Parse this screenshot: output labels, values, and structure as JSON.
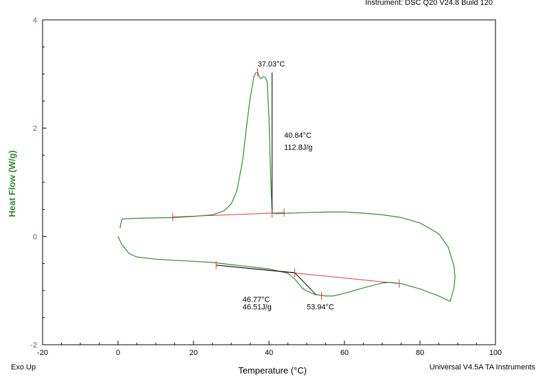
{
  "header": {
    "instrument": "Instrument: DSC Q20 V24.8 Build 120"
  },
  "footer": {
    "exo_direction": "Exo Up",
    "software": "Universal V4.5A TA Instruments"
  },
  "colors": {
    "curve": "#2e8b2e",
    "baseline": "#e03a3a",
    "annotation_line": "#000000",
    "ylabel": "#2e8b2e"
  },
  "chart_data": {
    "type": "line",
    "xlabel": "Temperature (°C)",
    "ylabel": "Heat Flow (W/g)",
    "xlim": [
      -20,
      100
    ],
    "ylim": [
      -2,
      4
    ],
    "xticks": [
      -20,
      0,
      20,
      40,
      60,
      80,
      100
    ],
    "yticks": [
      -2,
      0,
      2,
      4
    ],
    "grid": false,
    "series": [
      {
        "x": [
          0.5,
          1,
          3,
          8,
          15,
          20,
          25,
          28,
          30,
          31.5,
          33,
          34,
          35,
          36,
          36.5,
          37,
          37.5,
          38,
          38.5,
          39,
          39.5,
          40,
          40.3,
          40.6,
          40.9,
          42,
          45,
          50,
          55,
          60,
          65,
          70,
          75,
          80,
          85,
          87.5,
          89,
          89.3,
          89,
          88,
          85,
          80,
          75,
          72,
          70,
          65,
          60,
          57,
          55,
          52,
          49,
          47,
          45,
          40,
          35,
          30,
          25,
          20,
          15,
          10,
          5,
          3,
          1,
          0
        ],
        "y": [
          0.15,
          0.32,
          0.33,
          0.34,
          0.35,
          0.37,
          0.4,
          0.47,
          0.6,
          0.85,
          1.4,
          2.0,
          2.55,
          2.95,
          3.02,
          3.03,
          2.93,
          2.92,
          2.95,
          2.94,
          2.86,
          2.2,
          1.4,
          0.8,
          0.43,
          0.42,
          0.43,
          0.44,
          0.45,
          0.45,
          0.43,
          0.4,
          0.35,
          0.25,
          0.05,
          -0.2,
          -0.55,
          -0.75,
          -0.95,
          -1.2,
          -1.1,
          -0.97,
          -0.87,
          -0.85,
          -0.86,
          -0.95,
          -1.05,
          -1.1,
          -1.1,
          -1.07,
          -0.97,
          -0.8,
          -0.68,
          -0.6,
          -0.56,
          -0.52,
          -0.48,
          -0.46,
          -0.44,
          -0.42,
          -0.38,
          -0.32,
          -0.15,
          0.0
        ]
      }
    ],
    "baselines": [
      {
        "x": [
          14.5,
          44
        ],
        "y": [
          0.36,
          0.44
        ]
      },
      {
        "x": [
          26,
          74.5
        ],
        "y": [
          -0.53,
          -0.87
        ]
      }
    ],
    "markers": [
      {
        "x": 14.5,
        "y": 0.36
      },
      {
        "x": 44,
        "y": 0.44
      },
      {
        "x": 40.8,
        "y": 0.42
      },
      {
        "x": 37,
        "y": 3.03
      },
      {
        "x": 26,
        "y": -0.53
      },
      {
        "x": 46.8,
        "y": -0.67
      },
      {
        "x": 53.9,
        "y": -1.1
      },
      {
        "x": 74.5,
        "y": -0.87
      }
    ],
    "annotation_lines": [
      {
        "x": [
          40.8,
          40.8
        ],
        "y": [
          3.03,
          0.42
        ]
      },
      {
        "x": [
          26,
          46.8,
          52.5
        ],
        "y": [
          -0.53,
          -0.67,
          -1.08
        ]
      }
    ],
    "annotations": [
      {
        "text": "37.03°C",
        "x": 37,
        "y": 3.14
      },
      {
        "text": "40.84°C",
        "x": 44,
        "y": 1.82
      },
      {
        "text": "112.8J/g",
        "x": 44,
        "y": 1.6
      },
      {
        "text": "46.77°C",
        "x": 33,
        "y": -1.21
      },
      {
        "text": "46.51J/g",
        "x": 33,
        "y": -1.35
      },
      {
        "text": "53.94°C",
        "x": 50,
        "y": -1.35
      }
    ]
  }
}
